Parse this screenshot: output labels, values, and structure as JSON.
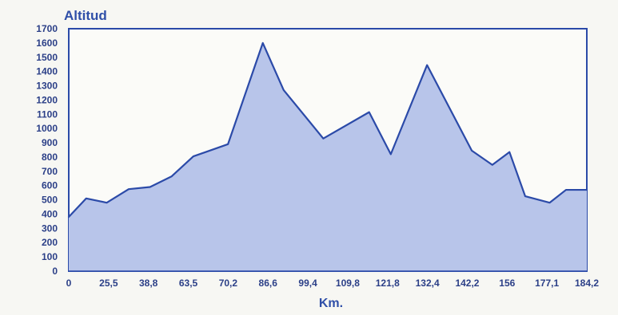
{
  "chart_data": {
    "type": "area",
    "title": "",
    "xlabel": "Km.",
    "ylabel": "Altitud",
    "xlim": [
      0,
      184.2
    ],
    "ylim": [
      0,
      1700
    ],
    "yticks": [
      "1700",
      "1600",
      "1500",
      "1400",
      "1300",
      "1200",
      "1100",
      "1000",
      "900",
      "800",
      "700",
      "600",
      "500",
      "400",
      "300",
      "200",
      "100",
      "0"
    ],
    "xticks": [
      "0",
      "25,5",
      "38,8",
      "63,5",
      "70,2",
      "86,6",
      "99,4",
      "109,8",
      "121,8",
      "132,4",
      "142,2",
      "156",
      "177,1",
      "184,2"
    ],
    "grid": false,
    "series": [
      {
        "values": [
          {
            "x": 0,
            "y": 380
          },
          {
            "x": 6.2,
            "y": 510
          },
          {
            "x": 13.5,
            "y": 480
          },
          {
            "x": 21.3,
            "y": 575
          },
          {
            "x": 28.9,
            "y": 590
          },
          {
            "x": 36.6,
            "y": 665
          },
          {
            "x": 44.3,
            "y": 805
          },
          {
            "x": 56.6,
            "y": 890
          },
          {
            "x": 69.0,
            "y": 1600
          },
          {
            "x": 76.4,
            "y": 1270
          },
          {
            "x": 90.5,
            "y": 930
          },
          {
            "x": 106.8,
            "y": 1115
          },
          {
            "x": 114.5,
            "y": 820
          },
          {
            "x": 127.4,
            "y": 1445
          },
          {
            "x": 143.3,
            "y": 845
          },
          {
            "x": 150.6,
            "y": 745
          },
          {
            "x": 156.7,
            "y": 835
          },
          {
            "x": 162.3,
            "y": 525
          },
          {
            "x": 171.0,
            "y": 480
          },
          {
            "x": 176.8,
            "y": 570
          },
          {
            "x": 184.2,
            "y": 570
          }
        ]
      }
    ]
  },
  "colors": {
    "accent": "#2b4aa8",
    "fill": "#b8c5ea",
    "background": "#f7f7f3"
  }
}
